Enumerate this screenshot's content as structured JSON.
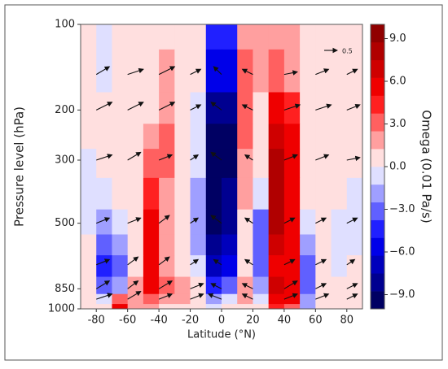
{
  "chart_data": {
    "type": "contourf",
    "xlabel": "Latitude (°N)",
    "ylabel": "Pressure level (hPa)",
    "colorbar_label": "Omega (0.01 Pa/s)",
    "colormap": "seismic",
    "xlim": [
      -90,
      90
    ],
    "xticks": [
      -80,
      -60,
      -40,
      -20,
      0,
      20,
      40,
      60,
      80
    ],
    "ylim": [
      1000,
      100
    ],
    "yscale": "log",
    "yticks": [
      100,
      200,
      300,
      500,
      850,
      1000
    ],
    "clim": [
      -10,
      10
    ],
    "cticks": [
      {
        "value": 9,
        "label": "9.0"
      },
      {
        "value": 6,
        "label": "6.0"
      },
      {
        "value": 3,
        "label": "3.0"
      },
      {
        "value": 0,
        "label": "0.0"
      },
      {
        "value": -3,
        "label": "−3.0"
      },
      {
        "value": -6,
        "label": "−6.0"
      },
      {
        "value": -9,
        "label": "−9.0"
      }
    ],
    "levels": [
      -10,
      -8.75,
      -7.5,
      -6.25,
      -5,
      -3.75,
      -2.5,
      -1.25,
      0,
      1.25,
      2.5,
      3.75,
      5,
      6.25,
      7.5,
      8.75,
      10
    ],
    "field": {
      "lat": [
        -85,
        -75,
        -65,
        -55,
        -45,
        -35,
        -25,
        -15,
        -5,
        5,
        15,
        25,
        35,
        45,
        55,
        65,
        75,
        85
      ],
      "pressure": [
        100,
        150,
        200,
        250,
        300,
        400,
        500,
        600,
        700,
        850,
        925,
        1000
      ],
      "omega": [
        [
          1,
          -1,
          1,
          1,
          1,
          1,
          1,
          0,
          -4,
          -4,
          2,
          2,
          2,
          2,
          1,
          1,
          1,
          1
        ],
        [
          1,
          -1,
          1,
          1,
          1,
          2,
          1,
          0,
          -6,
          -6,
          3,
          2,
          3,
          2,
          1,
          1,
          1,
          1
        ],
        [
          0,
          0,
          1,
          1,
          1,
          2,
          1,
          -1,
          -8,
          -8,
          3,
          1,
          6,
          4,
          1,
          1,
          0,
          0
        ],
        [
          0,
          0,
          0,
          1,
          2,
          3,
          1,
          -1,
          -9,
          -9,
          3,
          1,
          7,
          5,
          1,
          0,
          0,
          0
        ],
        [
          -1,
          0,
          0,
          1,
          3,
          3,
          0,
          -1,
          -9,
          -9,
          2,
          0,
          8,
          6,
          1,
          0,
          0,
          0
        ],
        [
          -1,
          -1,
          0,
          1,
          4,
          2,
          0,
          -2,
          -9,
          -8,
          2,
          -1,
          8,
          6,
          0,
          0,
          0,
          -1
        ],
        [
          -1,
          -2,
          -1,
          1,
          5,
          2,
          0,
          -2,
          -9,
          -8,
          1,
          -3,
          8,
          6,
          -1,
          0,
          -1,
          -1
        ],
        [
          0,
          -3,
          -2,
          1,
          5,
          2,
          0,
          -2,
          -8,
          -7,
          1,
          -3,
          7,
          5,
          -2,
          0,
          -1,
          -1
        ],
        [
          0,
          -4,
          -3,
          1,
          5,
          2,
          1,
          -1,
          -7,
          -6,
          1,
          -3,
          6,
          5,
          -3,
          0,
          -1,
          0
        ],
        [
          1,
          -3,
          -2,
          2,
          5,
          3,
          2,
          0,
          -4,
          -3,
          2,
          -2,
          7,
          6,
          -3,
          1,
          0,
          0
        ],
        [
          1,
          -1,
          3,
          2,
          3,
          2,
          2,
          1,
          -2,
          -1,
          2,
          -1,
          6,
          5,
          -2,
          1,
          0,
          0
        ],
        [
          0,
          1,
          6,
          2,
          2,
          1,
          1,
          1,
          -1,
          0,
          1,
          0,
          4,
          3,
          -2,
          0,
          0,
          0
        ]
      ]
    },
    "vectors": {
      "lat": [
        -80,
        -60,
        -40,
        -20,
        0,
        20,
        40,
        60,
        80
      ],
      "pressure": [
        150,
        200,
        300,
        500,
        700,
        850,
        925
      ],
      "u": [
        [
          0.5,
          0.6,
          0.6,
          0.4,
          -0.3,
          -0.4,
          0.5,
          0.5,
          0.4
        ],
        [
          0.6,
          0.6,
          0.6,
          0.4,
          -0.4,
          -0.4,
          0.6,
          0.6,
          0.5
        ],
        [
          0.6,
          0.5,
          0.5,
          0.3,
          -0.4,
          -0.3,
          0.5,
          0.5,
          0.5
        ],
        [
          0.5,
          0.5,
          0.4,
          0.3,
          -0.4,
          -0.3,
          0.4,
          0.4,
          0.4
        ],
        [
          0.5,
          0.4,
          0.4,
          0.3,
          -0.3,
          -0.3,
          0.4,
          0.4,
          0.3
        ],
        [
          0.5,
          0.4,
          0.5,
          0.5,
          -0.4,
          -0.4,
          0.5,
          0.4,
          0.4
        ],
        [
          0.6,
          0.5,
          0.5,
          0.5,
          -0.5,
          -0.4,
          0.5,
          0.5,
          0.4
        ]
      ],
      "w": [
        [
          0.3,
          0.2,
          0.3,
          0.2,
          0.3,
          0.2,
          0.1,
          0.2,
          0.2
        ],
        [
          0.3,
          0.3,
          0.3,
          0.2,
          0.3,
          0.2,
          0.2,
          0.2,
          0.2
        ],
        [
          0.2,
          0.3,
          0.2,
          0.2,
          0.3,
          0.2,
          0.2,
          0.2,
          0.1
        ],
        [
          0.2,
          0.2,
          0.3,
          0.2,
          0.3,
          0.2,
          0.2,
          0.2,
          0.2
        ],
        [
          0.2,
          0.3,
          0.3,
          0.2,
          0.2,
          0.2,
          0.2,
          0.2,
          0.2
        ],
        [
          0.3,
          0.3,
          0.3,
          0.2,
          0.2,
          0.2,
          0.3,
          0.2,
          0.2
        ],
        [
          0.2,
          0.3,
          0.2,
          0.2,
          0.2,
          0.2,
          0.2,
          0.2,
          0.2
        ]
      ],
      "reference": {
        "value": 0.5,
        "label": "0.5"
      }
    }
  }
}
